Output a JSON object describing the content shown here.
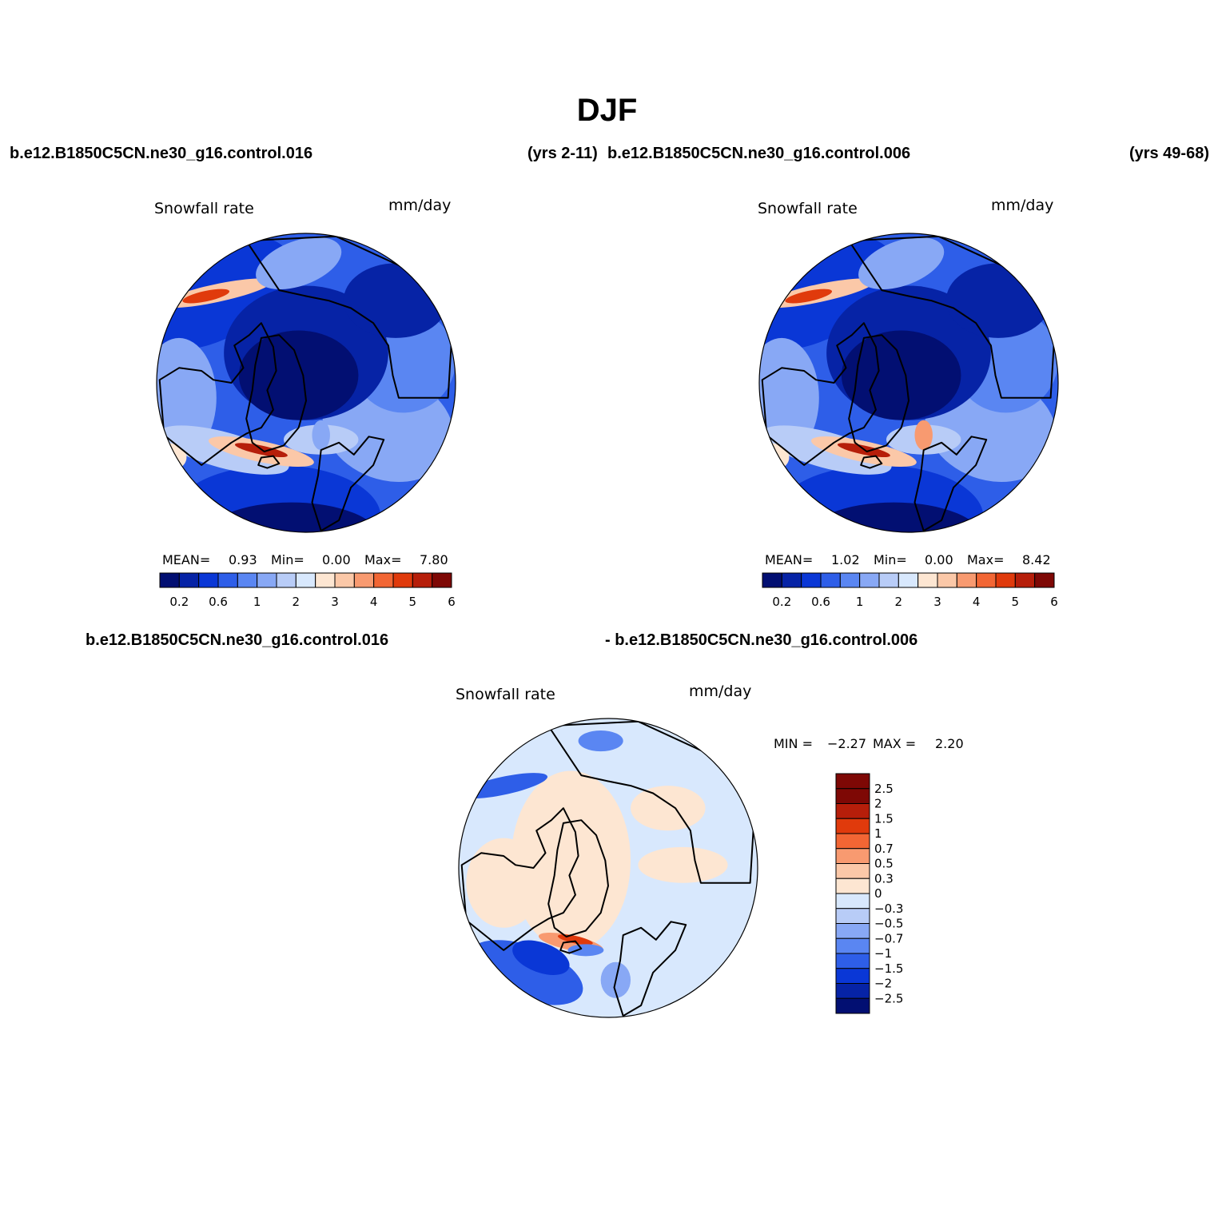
{
  "season_title": "DJF",
  "header": {
    "case1": "b.e12.B1850C5CN.ne30_g16.control.016",
    "years1": "(yrs 2-11)",
    "case2": "b.e12.B1850C5CN.ne30_g16.control.006",
    "years2": "(yrs 49-68)"
  },
  "diff_header": {
    "case1": "b.e12.B1850C5CN.ne30_g16.control.016",
    "case2": "- b.e12.B1850C5CN.ne30_g16.control.006"
  },
  "chart_data": [
    {
      "type": "heatmap",
      "projection": "north-polar-stereographic",
      "title": "Snowfall rate",
      "units": "mm/day",
      "stats": {
        "mean_label": "MEAN=",
        "mean": "0.93",
        "min_label": "Min=",
        "min": "0.00",
        "max_label": "Max=",
        "max": "7.80"
      },
      "contour_levels": [
        0.2,
        0.4,
        0.6,
        0.8,
        1,
        1.5,
        2,
        2.5,
        3,
        3.5,
        4,
        4.5,
        5,
        5.5,
        6
      ],
      "colorbar_tick_labels": [
        "0.2",
        "0.6",
        "1",
        "2",
        "3",
        "4",
        "5",
        "6"
      ],
      "colorbar_placement": "bottom"
    },
    {
      "type": "heatmap",
      "projection": "north-polar-stereographic",
      "title": "Snowfall rate",
      "units": "mm/day",
      "stats": {
        "mean_label": "MEAN=",
        "mean": "1.02",
        "min_label": "Min=",
        "min": "0.00",
        "max_label": "Max=",
        "max": "8.42"
      },
      "contour_levels": [
        0.2,
        0.4,
        0.6,
        0.8,
        1,
        1.5,
        2,
        2.5,
        3,
        3.5,
        4,
        4.5,
        5,
        5.5,
        6
      ],
      "colorbar_tick_labels": [
        "0.2",
        "0.6",
        "1",
        "2",
        "3",
        "4",
        "5",
        "6"
      ],
      "colorbar_placement": "bottom"
    },
    {
      "type": "heatmap",
      "projection": "north-polar-stereographic",
      "title": "Snowfall rate",
      "units": "mm/day",
      "stats": {
        "min_label": "MIN =",
        "min": "−2.27",
        "max_label": "MAX =",
        "max": "2.20"
      },
      "contour_levels": [
        -2.5,
        -2,
        -1.5,
        -1,
        -0.7,
        -0.5,
        -0.3,
        0,
        0.3,
        0.5,
        0.7,
        1,
        1.5,
        2,
        2.5
      ],
      "colorbar_tick_labels": [
        "2.5",
        "2",
        "1.5",
        "1",
        "0.7",
        "0.5",
        "0.3",
        "0",
        "−0.3",
        "−0.5",
        "−0.7",
        "−1",
        "−1.5",
        "−2",
        "−2.5"
      ],
      "colorbar_placement": "right"
    }
  ],
  "colors": {
    "ramp": [
      "#020f72",
      "#0623a6",
      "#0a37d6",
      "#2e5ee8",
      "#5a86f2",
      "#88a8f5",
      "#b8ccf7",
      "#d8e8fd",
      "#fde6d2",
      "#fbc8a8",
      "#f89a70",
      "#f26634",
      "#e03a0c",
      "#b61e0a",
      "#7e0805"
    ],
    "diff_ramp": [
      "#020f72",
      "#0623a6",
      "#0a37d6",
      "#2e5ee8",
      "#5a86f2",
      "#88a8f5",
      "#b8ccf7",
      "#d8e8fd",
      "#fde6d2",
      "#fbc8a8",
      "#f89a70",
      "#f26634",
      "#e03a0c",
      "#b61e0a",
      "#7e0805",
      "#7e0805"
    ],
    "coast": "#000000"
  }
}
